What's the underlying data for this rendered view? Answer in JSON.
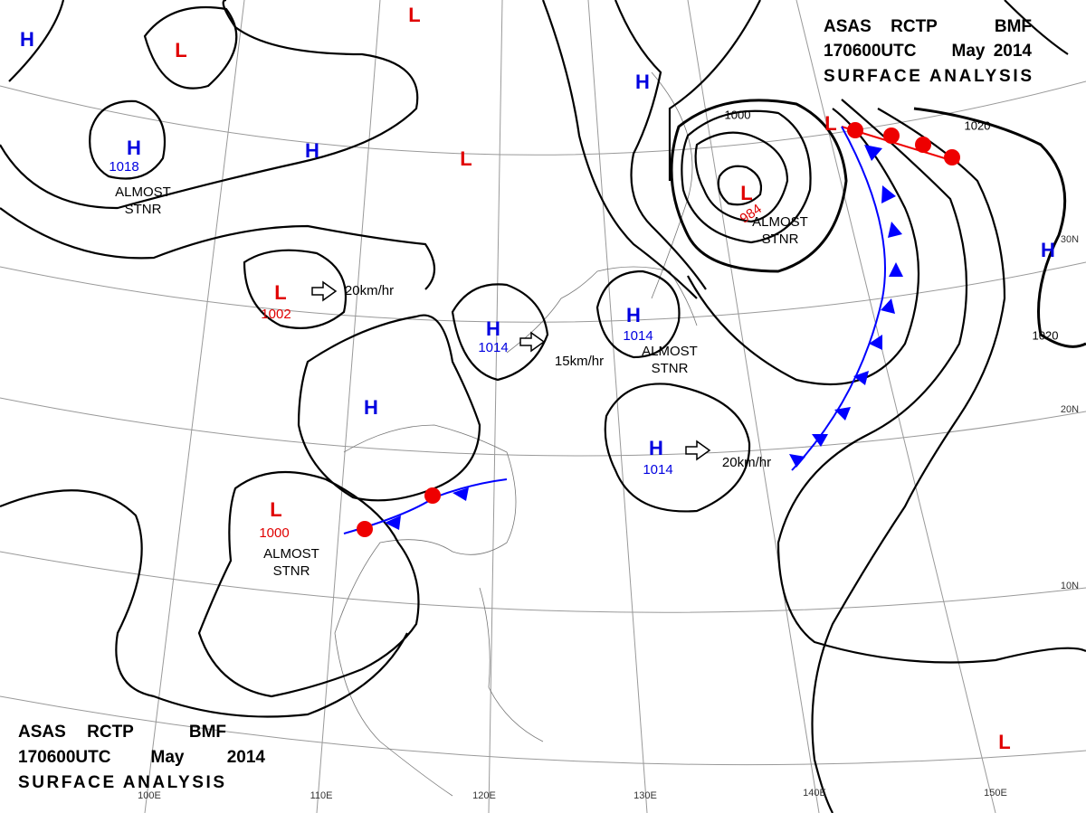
{
  "header": {
    "line1": [
      "ASAS",
      "RCTP",
      "BMF"
    ],
    "line2": [
      "170600UTC",
      "May",
      "2014"
    ],
    "line3": "SURFACE ANALYSIS"
  },
  "pressure_centers": [
    {
      "symbol": "H",
      "value": "1018"
    },
    {
      "symbol": "L",
      "value": "1002"
    },
    {
      "symbol": "H",
      "value": "1014"
    },
    {
      "symbol": "H",
      "value": "1014"
    },
    {
      "symbol": "H",
      "value": "1014"
    },
    {
      "symbol": "L",
      "value": "1000"
    },
    {
      "symbol": "L",
      "value": "984"
    },
    {
      "symbol": "H"
    },
    {
      "symbol": "H"
    },
    {
      "symbol": "H"
    },
    {
      "symbol": "H"
    },
    {
      "symbol": "H"
    },
    {
      "symbol": "L"
    },
    {
      "symbol": "L"
    },
    {
      "symbol": "L"
    },
    {
      "symbol": "L"
    },
    {
      "symbol": "L"
    }
  ],
  "annotations": [
    "ALMOST STNR",
    "ALMOST STNR",
    "ALMOST STNR",
    "ALMOST STNR",
    "20km/hr",
    "15km/hr",
    "20km/hr"
  ],
  "isobar_labels": [
    "1000",
    "1020",
    "1020"
  ],
  "longitudes": [
    "100E",
    "110E",
    "120E",
    "130E",
    "140E",
    "150E"
  ],
  "latitudes": [
    "30N",
    "20N",
    "10N"
  ]
}
